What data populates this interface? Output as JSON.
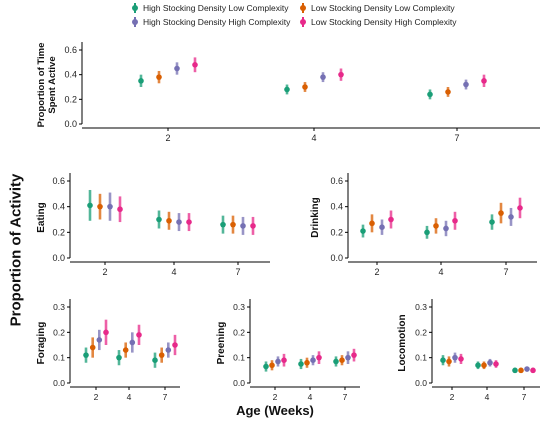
{
  "legend": {
    "items": [
      {
        "label": "High Stocking Density Low Complexity",
        "color": "#1a9e77"
      },
      {
        "label": "Low Stocking Density Low Complexity",
        "color": "#d95f02"
      },
      {
        "label": "High Stocking Density High Complexity",
        "color": "#7570b3"
      },
      {
        "label": "Low Stocking Density High Complexity",
        "color": "#e7298a"
      }
    ]
  },
  "figure": {
    "ylabel": "Proportion of Activity",
    "xlabel": "Age (Weeks)"
  },
  "chart_data": [
    {
      "type": "scatter",
      "title": "",
      "ylabel": "Proportion of Time Spent Active",
      "categories": [
        "2",
        "4",
        "7"
      ],
      "ylim": [
        0,
        0.6
      ],
      "yticks": [
        "0.0",
        "0.2",
        "0.4",
        "0.6"
      ],
      "series": [
        {
          "name": "High Stocking Density Low Complexity",
          "values": [
            0.35,
            0.28,
            0.24
          ],
          "errors": [
            0.05,
            0.04,
            0.04
          ]
        },
        {
          "name": "Low Stocking Density Low Complexity",
          "values": [
            0.38,
            0.3,
            0.26
          ],
          "errors": [
            0.05,
            0.04,
            0.04
          ]
        },
        {
          "name": "High Stocking Density High Complexity",
          "values": [
            0.45,
            0.38,
            0.32
          ],
          "errors": [
            0.05,
            0.04,
            0.04
          ]
        },
        {
          "name": "Low Stocking Density High Complexity",
          "values": [
            0.48,
            0.4,
            0.35
          ],
          "errors": [
            0.06,
            0.05,
            0.05
          ]
        }
      ]
    },
    {
      "type": "scatter",
      "title": "",
      "ylabel": "Eating",
      "categories": [
        "2",
        "4",
        "7"
      ],
      "ylim": [
        0,
        0.6
      ],
      "yticks": [
        "0.0",
        "0.2",
        "0.4",
        "0.6"
      ],
      "series": [
        {
          "name": "High Stocking Density Low Complexity",
          "values": [
            0.41,
            0.3,
            0.26
          ],
          "errors": [
            0.12,
            0.07,
            0.07
          ]
        },
        {
          "name": "Low Stocking Density Low Complexity",
          "values": [
            0.4,
            0.29,
            0.26
          ],
          "errors": [
            0.1,
            0.07,
            0.07
          ]
        },
        {
          "name": "High Stocking Density High Complexity",
          "values": [
            0.4,
            0.28,
            0.25
          ],
          "errors": [
            0.11,
            0.07,
            0.07
          ]
        },
        {
          "name": "Low Stocking Density High Complexity",
          "values": [
            0.38,
            0.28,
            0.25
          ],
          "errors": [
            0.1,
            0.07,
            0.07
          ]
        }
      ]
    },
    {
      "type": "scatter",
      "title": "",
      "ylabel": "Drinking",
      "categories": [
        "2",
        "4",
        "7"
      ],
      "ylim": [
        0,
        0.6
      ],
      "yticks": [
        "0.0",
        "0.2",
        "0.4",
        "0.6"
      ],
      "series": [
        {
          "name": "High Stocking Density Low Complexity",
          "values": [
            0.21,
            0.2,
            0.28
          ],
          "errors": [
            0.05,
            0.05,
            0.06
          ]
        },
        {
          "name": "Low Stocking Density Low Complexity",
          "values": [
            0.27,
            0.25,
            0.35
          ],
          "errors": [
            0.07,
            0.06,
            0.08
          ]
        },
        {
          "name": "High Stocking Density High Complexity",
          "values": [
            0.24,
            0.23,
            0.32
          ],
          "errors": [
            0.06,
            0.06,
            0.07
          ]
        },
        {
          "name": "Low Stocking Density High Complexity",
          "values": [
            0.3,
            0.29,
            0.39
          ],
          "errors": [
            0.07,
            0.07,
            0.08
          ]
        }
      ]
    },
    {
      "type": "scatter",
      "title": "",
      "ylabel": "Foraging",
      "categories": [
        "2",
        "4",
        "7"
      ],
      "ylim": [
        0,
        0.3
      ],
      "yticks": [
        "0.0",
        "0.1",
        "0.2",
        "0.3"
      ],
      "series": [
        {
          "name": "High Stocking Density Low Complexity",
          "values": [
            0.11,
            0.1,
            0.09
          ],
          "errors": [
            0.03,
            0.03,
            0.03
          ]
        },
        {
          "name": "Low Stocking Density Low Complexity",
          "values": [
            0.14,
            0.13,
            0.11
          ],
          "errors": [
            0.04,
            0.03,
            0.03
          ]
        },
        {
          "name": "High Stocking Density High Complexity",
          "values": [
            0.17,
            0.16,
            0.13
          ],
          "errors": [
            0.04,
            0.04,
            0.03
          ]
        },
        {
          "name": "Low Stocking Density High Complexity",
          "values": [
            0.2,
            0.19,
            0.15
          ],
          "errors": [
            0.05,
            0.04,
            0.04
          ]
        }
      ]
    },
    {
      "type": "scatter",
      "title": "",
      "ylabel": "Preening",
      "categories": [
        "2",
        "4",
        "7"
      ],
      "ylim": [
        0,
        0.3
      ],
      "yticks": [
        "0.0",
        "0.1",
        "0.2",
        "0.3"
      ],
      "series": [
        {
          "name": "High Stocking Density Low Complexity",
          "values": [
            0.065,
            0.075,
            0.085
          ],
          "errors": [
            0.02,
            0.02,
            0.02
          ]
        },
        {
          "name": "Low Stocking Density Low Complexity",
          "values": [
            0.07,
            0.08,
            0.09
          ],
          "errors": [
            0.02,
            0.02,
            0.02
          ]
        },
        {
          "name": "High Stocking Density High Complexity",
          "values": [
            0.085,
            0.09,
            0.1
          ],
          "errors": [
            0.02,
            0.02,
            0.025
          ]
        },
        {
          "name": "Low Stocking Density High Complexity",
          "values": [
            0.09,
            0.1,
            0.11
          ],
          "errors": [
            0.025,
            0.025,
            0.025
          ]
        }
      ]
    },
    {
      "type": "scatter",
      "title": "",
      "ylabel": "Locomotion",
      "categories": [
        "2",
        "4",
        "7"
      ],
      "ylim": [
        0,
        0.3
      ],
      "yticks": [
        "0.0",
        "0.1",
        "0.2",
        "0.3"
      ],
      "series": [
        {
          "name": "High Stocking Density Low Complexity",
          "values": [
            0.09,
            0.07,
            0.05
          ],
          "errors": [
            0.02,
            0.015,
            0.01
          ]
        },
        {
          "name": "Low Stocking Density Low Complexity",
          "values": [
            0.085,
            0.07,
            0.05
          ],
          "errors": [
            0.02,
            0.015,
            0.01
          ]
        },
        {
          "name": "High Stocking Density High Complexity",
          "values": [
            0.1,
            0.08,
            0.055
          ],
          "errors": [
            0.02,
            0.015,
            0.01
          ]
        },
        {
          "name": "Low Stocking Density High Complexity",
          "values": [
            0.095,
            0.075,
            0.05
          ],
          "errors": [
            0.02,
            0.015,
            0.01
          ]
        }
      ]
    }
  ]
}
